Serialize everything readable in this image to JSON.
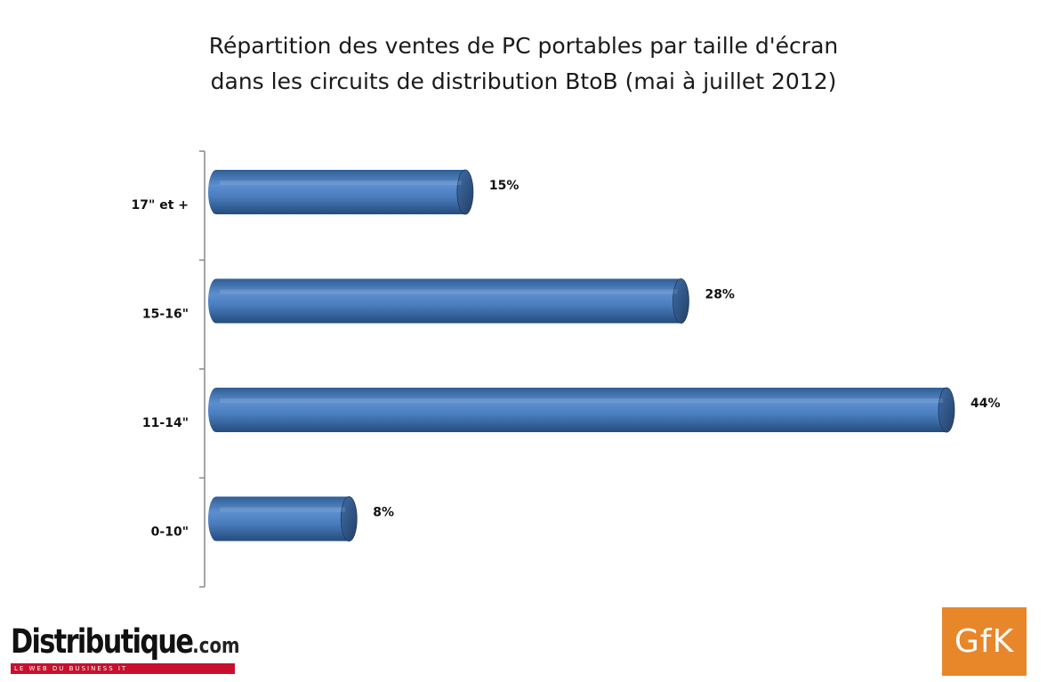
{
  "title_lines": [
    "Répartition des ventes de PC portables par taille d'écran",
    "dans les circuits de distribution BtoB (mai à juillet 2012)"
  ],
  "chart_data": {
    "type": "bar",
    "orientation": "horizontal",
    "style": "3d-cylinder",
    "title": "Répartition des ventes de PC portables par taille d'écran dans les circuits de distribution BtoB (mai à juillet 2012)",
    "categories": [
      "17\" et +",
      "15-16\"",
      "11-14\"",
      "0-10\""
    ],
    "values": [
      15,
      28,
      44,
      8
    ],
    "value_labels": [
      "15%",
      "28%",
      "44%",
      "8%"
    ],
    "unit": "%",
    "xlim": [
      0,
      47
    ],
    "grid": false,
    "legend": "none",
    "bar_color": "#4f81bd"
  },
  "logos": {
    "distributique": {
      "name": "Distributique",
      "suffix": ".com",
      "tagline": "LE WEB DU BUSINESS IT"
    },
    "gfk": {
      "text": "GfK",
      "color": "#e8862a"
    }
  }
}
